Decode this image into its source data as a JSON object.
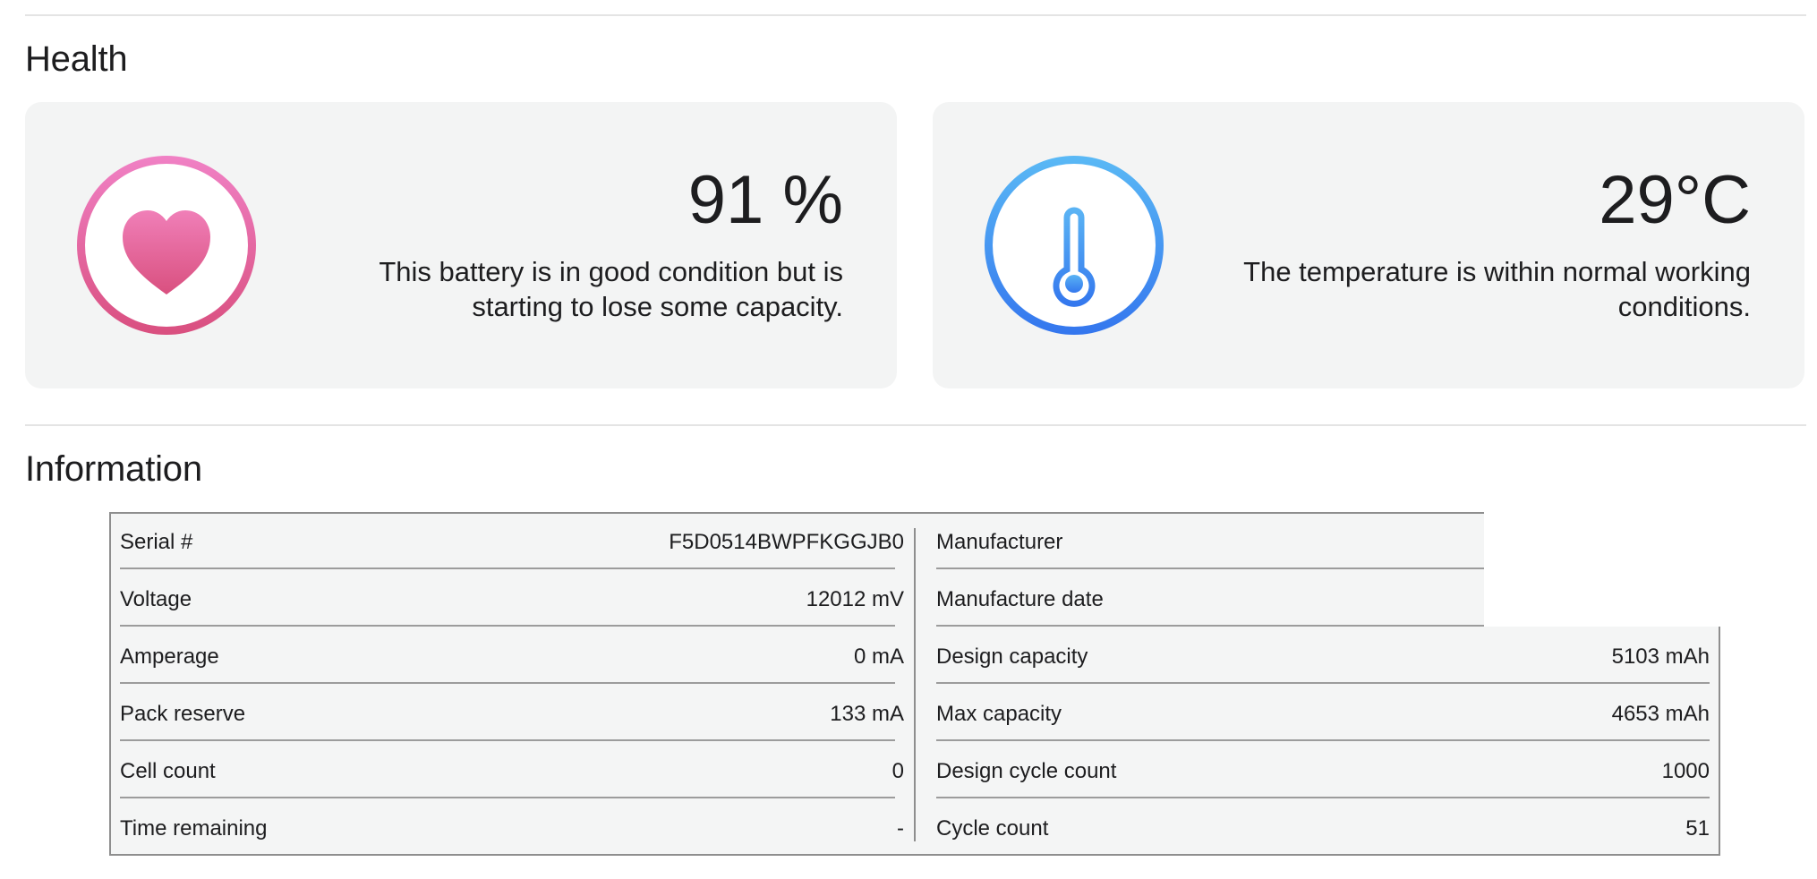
{
  "sections": {
    "health_title": "Health",
    "information_title": "Information"
  },
  "health": {
    "value": "91 %",
    "description": "This battery is in good condition but is starting to lose some capacity.",
    "icon": "heart-icon",
    "ring_colors": [
      "#f081c5",
      "#d94f7f"
    ]
  },
  "temperature": {
    "value": "29°C",
    "description": "The temperature is within normal working conditions.",
    "icon": "thermometer-icon",
    "ring_colors": [
      "#5ab9f5",
      "#3476ee"
    ]
  },
  "info": {
    "left": [
      {
        "label": "Serial #",
        "value": "F5D0514BWPFKGGJB0"
      },
      {
        "label": "Voltage",
        "value": "12012 mV"
      },
      {
        "label": "Amperage",
        "value": "0 mA"
      },
      {
        "label": "Pack reserve",
        "value": "133 mA"
      },
      {
        "label": "Cell count",
        "value": "0"
      },
      {
        "label": "Time remaining",
        "value": "-"
      }
    ],
    "right": [
      {
        "label": "Manufacturer",
        "value": ""
      },
      {
        "label": "Manufacture date",
        "value": ""
      },
      {
        "label": "Design capacity",
        "value": "5103 mAh"
      },
      {
        "label": "Max capacity",
        "value": "4653 mAh"
      },
      {
        "label": "Design cycle count",
        "value": "1000"
      },
      {
        "label": "Cycle count",
        "value": "51"
      }
    ]
  }
}
